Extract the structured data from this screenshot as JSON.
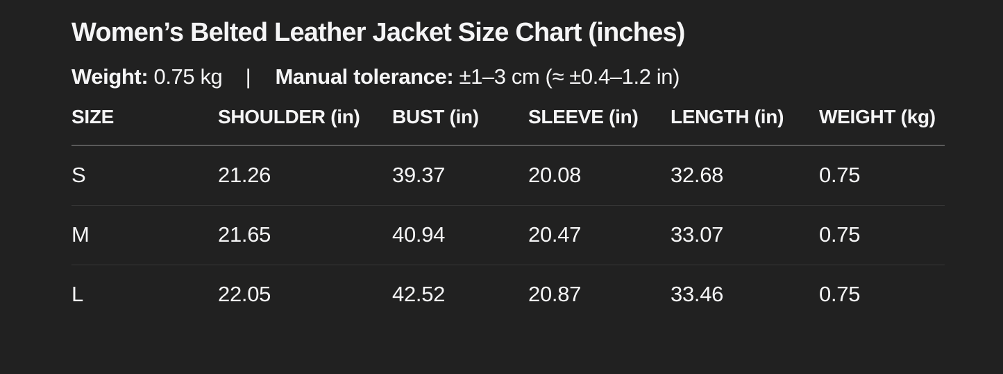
{
  "page": {
    "title": "Women’s Belted Leather Jacket Size Chart (inches)",
    "meta": {
      "weight_label": "Weight:",
      "weight_value": "0.75 kg",
      "separator": "|",
      "tolerance_label": "Manual tolerance:",
      "tolerance_value": "±1–3 cm (≈ ±0.4–1.2 in)"
    }
  },
  "table": {
    "headers": [
      "SIZE",
      "SHOULDER (in)",
      "BUST (in)",
      "SLEEVE (in)",
      "LENGTH (in)",
      "WEIGHT (kg)"
    ],
    "rows": [
      [
        "S",
        "21.26",
        "39.37",
        "20.08",
        "32.68",
        "0.75"
      ],
      [
        "M",
        "21.65",
        "40.94",
        "20.47",
        "33.07",
        "0.75"
      ],
      [
        "L",
        "22.05",
        "42.52",
        "20.87",
        "33.46",
        "0.75"
      ]
    ]
  },
  "colors": {
    "background": "#212121",
    "text": "#f5f5f6",
    "header_divider": "#5a5a5a",
    "row_divider": "#373737"
  }
}
